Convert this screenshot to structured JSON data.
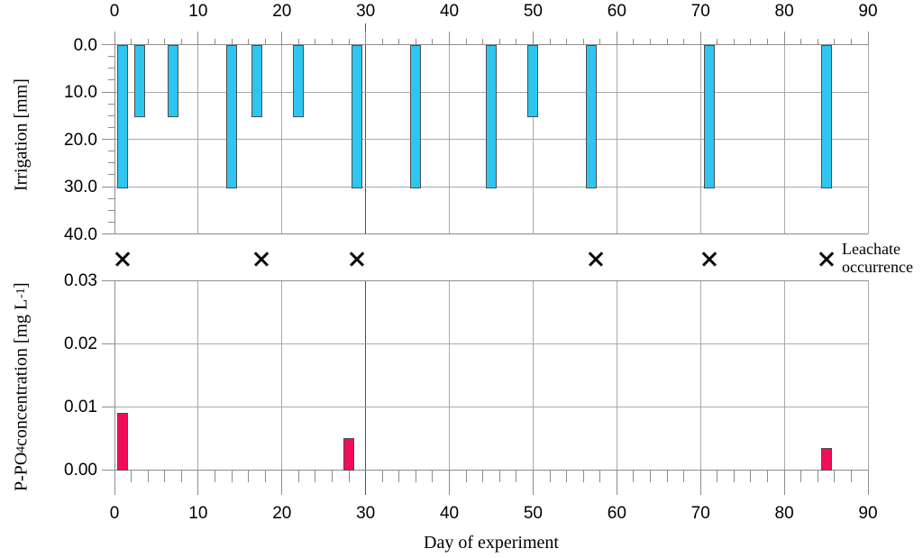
{
  "figure": {
    "background": "#ffffff",
    "legend": {
      "line1": "Leachate",
      "line2": "occurrence"
    },
    "colors": {
      "irrigation_bar": "#2ec6f0",
      "p_po4_bar": "#f20d5c",
      "bar_border": "#4d4d4d",
      "gridline": "#a9a9a9",
      "axis": "#8c8c8c",
      "dark_gridline": "#4f4f4f",
      "marker": "#0a0a0a",
      "text": "#000000"
    },
    "x_axis": {
      "title": "Day of experiment",
      "range": [
        0,
        90
      ],
      "major_ticks": [
        0,
        10,
        20,
        30,
        40,
        50,
        60,
        70,
        80,
        90
      ],
      "minor_step": 2
    }
  },
  "chart_data": [
    {
      "id": "irrigation",
      "type": "bar",
      "ylabel": "Irrigation [mm]",
      "y_ticks": [
        "0.0",
        "10.0",
        "20.0",
        "30.0",
        "40.0"
      ],
      "y_tick_values": [
        0,
        10,
        20,
        30,
        40
      ],
      "ylim": [
        40,
        0
      ],
      "y_axis_inverted": true,
      "x": [
        1,
        3,
        7,
        14,
        17,
        22,
        29,
        36,
        45,
        50,
        57,
        71,
        85
      ],
      "values": [
        30,
        15,
        15,
        30,
        15,
        15,
        30,
        30,
        30,
        15,
        30,
        30,
        30
      ],
      "bar_width_days": 1.3,
      "grid": true,
      "x_axis_position": "top"
    },
    {
      "id": "leachate",
      "type": "scatter",
      "label": "Leachate occurrence",
      "marker": "x",
      "x": [
        1,
        17.5,
        29,
        57.5,
        71,
        85
      ]
    },
    {
      "id": "p_po4",
      "type": "bar",
      "ylabel": "P-PO4 concentration [mg L-1]",
      "ylabel_parts": {
        "prefix": "P-PO",
        "sub": "4",
        "mid": " concentration [mg L",
        "sup": "-1",
        "suffix": "]"
      },
      "xlabel": "Day of experiment",
      "y_ticks": [
        "0.00",
        "0.01",
        "0.02",
        "0.03"
      ],
      "y_tick_values": [
        0,
        0.01,
        0.02,
        0.03
      ],
      "ylim": [
        0,
        0.03
      ],
      "x": [
        1,
        28,
        85
      ],
      "values": [
        0.009,
        0.005,
        0.0035
      ],
      "bar_width_days": 1.3,
      "grid": true,
      "x_axis_position": "bottom"
    }
  ]
}
